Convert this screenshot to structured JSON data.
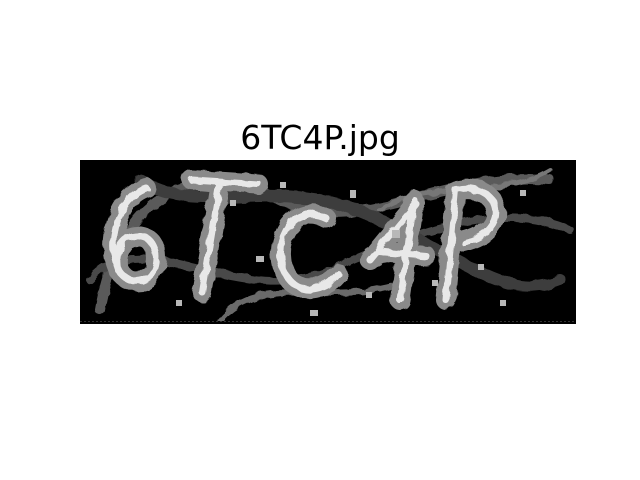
{
  "figure": {
    "title": "6TC4P.jpg"
  },
  "captcha_image": {
    "colors": {
      "background": "#000000",
      "glyph_stroke": "#e8e8e8",
      "glyph_shadow": "#8a8a8a",
      "noise": "#b8b8b8"
    }
  }
}
